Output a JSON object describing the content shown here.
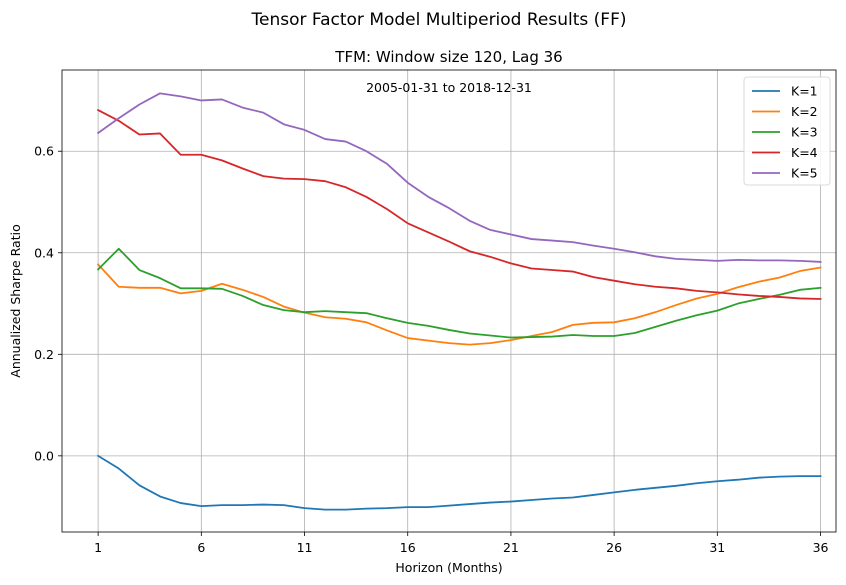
{
  "chart_data": {
    "type": "line",
    "suptitle": "Tensor Factor Model Multiperiod Results (FF)",
    "title": "TFM: Window size 120, Lag 36",
    "annotation": "2005-01-31 to 2018-12-31",
    "xlabel": "Horizon (Months)",
    "ylabel": "Annualized Sharpe Ratio",
    "xlim": [
      -0.75,
      36.75
    ],
    "ylim": [
      -0.15,
      0.76
    ],
    "xticks": [
      1,
      6,
      11,
      16,
      21,
      26,
      31,
      36
    ],
    "yticks": [
      0.0,
      0.2,
      0.4,
      0.6
    ],
    "ytick_labels": [
      "0.0",
      "0.2",
      "0.4",
      "0.6"
    ],
    "grid": true,
    "legend_position": "top-right",
    "x": [
      1,
      2,
      3,
      4,
      5,
      6,
      7,
      8,
      9,
      10,
      11,
      12,
      13,
      14,
      15,
      16,
      17,
      18,
      19,
      20,
      21,
      22,
      23,
      24,
      25,
      26,
      27,
      28,
      29,
      30,
      31,
      32,
      33,
      34,
      35,
      36
    ],
    "series": [
      {
        "name": "K=1",
        "color": "#1f77b4",
        "values": [
          0.0,
          -0.025,
          -0.058,
          -0.08,
          -0.093,
          -0.099,
          -0.097,
          -0.097,
          -0.096,
          -0.097,
          -0.103,
          -0.106,
          -0.106,
          -0.104,
          -0.103,
          -0.101,
          -0.101,
          -0.098,
          -0.095,
          -0.092,
          -0.09,
          -0.087,
          -0.084,
          -0.082,
          -0.077,
          -0.072,
          -0.067,
          -0.063,
          -0.059,
          -0.054,
          -0.05,
          -0.047,
          -0.043,
          -0.041,
          -0.04,
          -0.04
        ]
      },
      {
        "name": "K=2",
        "color": "#ff7f0e",
        "values": [
          0.377,
          0.333,
          0.331,
          0.331,
          0.32,
          0.325,
          0.339,
          0.327,
          0.313,
          0.294,
          0.282,
          0.273,
          0.27,
          0.263,
          0.247,
          0.232,
          0.227,
          0.222,
          0.219,
          0.222,
          0.228,
          0.236,
          0.244,
          0.258,
          0.262,
          0.263,
          0.271,
          0.283,
          0.297,
          0.31,
          0.319,
          0.332,
          0.343,
          0.351,
          0.364,
          0.371
        ]
      },
      {
        "name": "K=3",
        "color": "#2ca02c",
        "values": [
          0.367,
          0.408,
          0.366,
          0.35,
          0.33,
          0.33,
          0.329,
          0.315,
          0.297,
          0.287,
          0.283,
          0.285,
          0.283,
          0.281,
          0.271,
          0.262,
          0.256,
          0.248,
          0.241,
          0.237,
          0.233,
          0.234,
          0.235,
          0.238,
          0.236,
          0.236,
          0.242,
          0.254,
          0.266,
          0.277,
          0.286,
          0.3,
          0.309,
          0.317,
          0.327,
          0.331
        ]
      },
      {
        "name": "K=4",
        "color": "#d62728",
        "values": [
          0.681,
          0.66,
          0.633,
          0.635,
          0.593,
          0.593,
          0.582,
          0.566,
          0.551,
          0.546,
          0.545,
          0.541,
          0.529,
          0.51,
          0.486,
          0.458,
          0.44,
          0.422,
          0.403,
          0.392,
          0.379,
          0.369,
          0.366,
          0.363,
          0.352,
          0.345,
          0.338,
          0.333,
          0.33,
          0.325,
          0.322,
          0.318,
          0.315,
          0.313,
          0.31,
          0.309
        ]
      },
      {
        "name": "K=5",
        "color": "#9467bd",
        "values": [
          0.636,
          0.665,
          0.692,
          0.714,
          0.708,
          0.7,
          0.702,
          0.686,
          0.676,
          0.653,
          0.642,
          0.624,
          0.619,
          0.6,
          0.575,
          0.538,
          0.51,
          0.488,
          0.463,
          0.445,
          0.436,
          0.427,
          0.424,
          0.421,
          0.414,
          0.408,
          0.401,
          0.393,
          0.388,
          0.386,
          0.384,
          0.386,
          0.385,
          0.385,
          0.384,
          0.382
        ]
      }
    ]
  }
}
